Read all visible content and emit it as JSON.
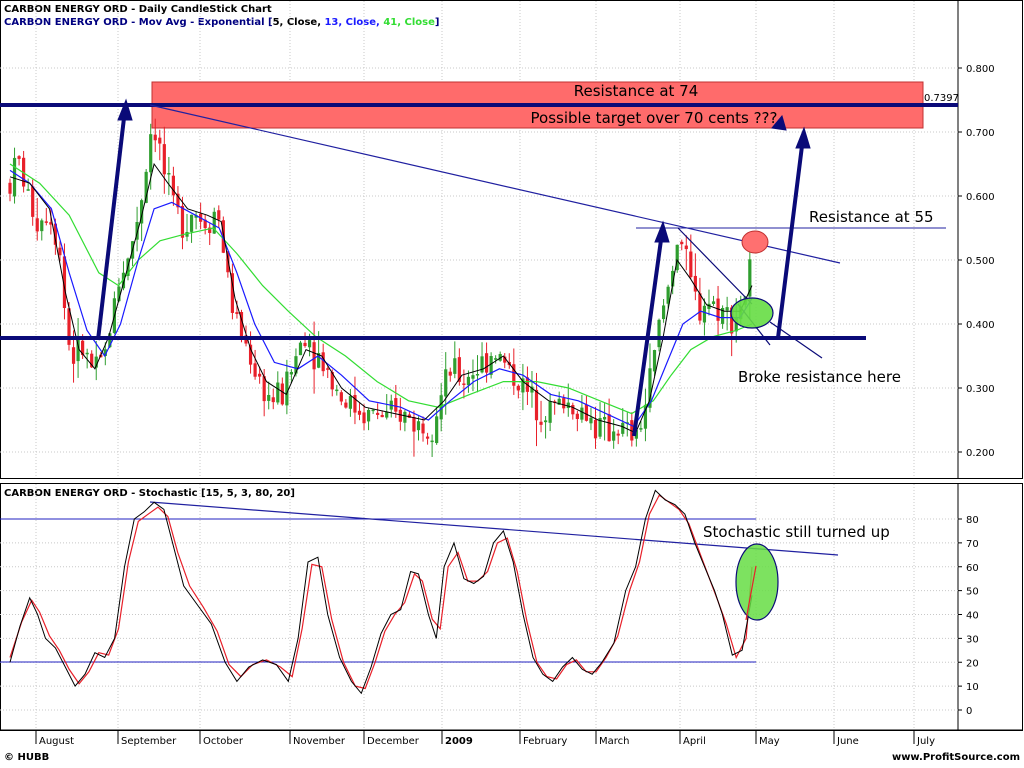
{
  "header": {
    "title": "CARBON ENERGY ORD - Daily CandleStick Chart",
    "mov_avg_prefix": "CARBON ENERGY ORD - Mov Avg - Exponential [",
    "ma_params": [
      "5, Close, ",
      "13, Close, ",
      "41, Close",
      "]"
    ],
    "stoch_title": "CARBON ENERGY ORD - Stochastic [15, 5, 3, 80, 20]"
  },
  "footer": {
    "left": "© HUBB",
    "right": "www.ProfitSource.com"
  },
  "colors": {
    "up_candle": "#2f9e2f",
    "down_candle": "#e8202a",
    "ema5": "#000000",
    "ema13": "#1a1aff",
    "ema41": "#33dd33",
    "annotation_lines": "#0a0a78",
    "resistance_box": "#ff6b6b",
    "stoch_k": "#000000",
    "stoch_d": "#e8202a"
  },
  "chart_data": [
    {
      "type": "candlestick",
      "title": "CARBON ENERGY ORD - Daily CandleStick Chart",
      "x_labels": [
        "August",
        "September",
        "October",
        "November",
        "December",
        "2009",
        "February",
        "March",
        "April",
        "May",
        "June",
        "July"
      ],
      "y_ticks": [
        "0.800",
        "0.700",
        "0.600",
        "0.500",
        "0.400",
        "0.300",
        "0.200"
      ],
      "ylim": [
        0.18,
        0.86
      ],
      "grid": true,
      "price_path": [
        [
          0,
          0.62
        ],
        [
          8,
          0.66
        ],
        [
          18,
          0.6
        ],
        [
          28,
          0.56
        ],
        [
          40,
          0.58
        ],
        [
          50,
          0.52
        ],
        [
          58,
          0.38
        ],
        [
          64,
          0.35
        ],
        [
          74,
          0.36
        ],
        [
          86,
          0.32
        ],
        [
          96,
          0.35
        ],
        [
          104,
          0.42
        ],
        [
          112,
          0.48
        ],
        [
          120,
          0.5
        ],
        [
          128,
          0.56
        ],
        [
          136,
          0.62
        ],
        [
          144,
          0.72
        ],
        [
          150,
          0.69
        ],
        [
          158,
          0.62
        ],
        [
          166,
          0.58
        ],
        [
          176,
          0.56
        ],
        [
          186,
          0.58
        ],
        [
          196,
          0.56
        ],
        [
          204,
          0.57
        ],
        [
          210,
          0.58
        ],
        [
          218,
          0.5
        ],
        [
          226,
          0.42
        ],
        [
          236,
          0.38
        ],
        [
          246,
          0.34
        ],
        [
          256,
          0.3
        ],
        [
          266,
          0.28
        ],
        [
          276,
          0.29
        ],
        [
          286,
          0.33
        ],
        [
          294,
          0.37
        ],
        [
          300,
          0.39
        ],
        [
          308,
          0.36
        ],
        [
          318,
          0.34
        ],
        [
          330,
          0.3
        ],
        [
          340,
          0.28
        ],
        [
          350,
          0.27
        ],
        [
          360,
          0.26
        ],
        [
          372,
          0.26
        ],
        [
          384,
          0.25
        ],
        [
          396,
          0.26
        ],
        [
          408,
          0.25
        ],
        [
          418,
          0.24
        ],
        [
          428,
          0.25
        ],
        [
          438,
          0.29
        ],
        [
          448,
          0.33
        ],
        [
          458,
          0.31
        ],
        [
          470,
          0.33
        ],
        [
          480,
          0.34
        ],
        [
          490,
          0.36
        ],
        [
          500,
          0.34
        ],
        [
          510,
          0.32
        ],
        [
          520,
          0.3
        ],
        [
          530,
          0.28
        ],
        [
          540,
          0.27
        ],
        [
          552,
          0.27
        ],
        [
          562,
          0.28
        ],
        [
          572,
          0.27
        ],
        [
          584,
          0.26
        ],
        [
          594,
          0.24
        ],
        [
          604,
          0.23
        ],
        [
          614,
          0.24
        ],
        [
          624,
          0.23
        ],
        [
          634,
          0.22
        ],
        [
          642,
          0.26
        ],
        [
          650,
          0.32
        ],
        [
          658,
          0.4
        ],
        [
          666,
          0.45
        ],
        [
          672,
          0.5
        ],
        [
          678,
          0.55
        ],
        [
          684,
          0.5
        ],
        [
          690,
          0.46
        ],
        [
          698,
          0.42
        ],
        [
          706,
          0.44
        ],
        [
          714,
          0.43
        ],
        [
          722,
          0.42
        ],
        [
          730,
          0.41
        ],
        [
          738,
          0.42
        ],
        [
          746,
          0.45
        ],
        [
          752,
          0.5
        ]
      ],
      "ema5": [
        [
          0,
          0.63
        ],
        [
          20,
          0.62
        ],
        [
          40,
          0.58
        ],
        [
          56,
          0.45
        ],
        [
          70,
          0.36
        ],
        [
          86,
          0.33
        ],
        [
          100,
          0.38
        ],
        [
          116,
          0.47
        ],
        [
          132,
          0.56
        ],
        [
          146,
          0.65
        ],
        [
          160,
          0.62
        ],
        [
          180,
          0.58
        ],
        [
          200,
          0.57
        ],
        [
          214,
          0.56
        ],
        [
          228,
          0.44
        ],
        [
          244,
          0.36
        ],
        [
          260,
          0.31
        ],
        [
          280,
          0.29
        ],
        [
          300,
          0.36
        ],
        [
          316,
          0.35
        ],
        [
          336,
          0.3
        ],
        [
          360,
          0.27
        ],
        [
          390,
          0.26
        ],
        [
          420,
          0.25
        ],
        [
          440,
          0.28
        ],
        [
          458,
          0.32
        ],
        [
          480,
          0.33
        ],
        [
          500,
          0.35
        ],
        [
          520,
          0.31
        ],
        [
          546,
          0.28
        ],
        [
          570,
          0.27
        ],
        [
          596,
          0.25
        ],
        [
          620,
          0.24
        ],
        [
          634,
          0.23
        ],
        [
          648,
          0.28
        ],
        [
          662,
          0.38
        ],
        [
          676,
          0.5
        ],
        [
          690,
          0.47
        ],
        [
          706,
          0.43
        ],
        [
          724,
          0.42
        ],
        [
          740,
          0.42
        ],
        [
          752,
          0.46
        ]
      ],
      "ema13": [
        [
          0,
          0.64
        ],
        [
          20,
          0.62
        ],
        [
          42,
          0.58
        ],
        [
          60,
          0.48
        ],
        [
          78,
          0.39
        ],
        [
          96,
          0.35
        ],
        [
          112,
          0.4
        ],
        [
          130,
          0.5
        ],
        [
          146,
          0.58
        ],
        [
          164,
          0.59
        ],
        [
          188,
          0.57
        ],
        [
          212,
          0.55
        ],
        [
          230,
          0.48
        ],
        [
          248,
          0.4
        ],
        [
          268,
          0.34
        ],
        [
          292,
          0.33
        ],
        [
          312,
          0.35
        ],
        [
          336,
          0.32
        ],
        [
          364,
          0.28
        ],
        [
          396,
          0.27
        ],
        [
          424,
          0.25
        ],
        [
          446,
          0.28
        ],
        [
          470,
          0.31
        ],
        [
          496,
          0.33
        ],
        [
          520,
          0.32
        ],
        [
          548,
          0.29
        ],
        [
          576,
          0.28
        ],
        [
          604,
          0.26
        ],
        [
          632,
          0.24
        ],
        [
          650,
          0.28
        ],
        [
          666,
          0.34
        ],
        [
          682,
          0.4
        ],
        [
          700,
          0.42
        ],
        [
          720,
          0.41
        ],
        [
          740,
          0.41
        ],
        [
          752,
          0.44
        ]
      ],
      "ema41": [
        [
          0,
          0.65
        ],
        [
          30,
          0.62
        ],
        [
          60,
          0.57
        ],
        [
          90,
          0.48
        ],
        [
          110,
          0.46
        ],
        [
          130,
          0.5
        ],
        [
          152,
          0.53
        ],
        [
          176,
          0.54
        ],
        [
          206,
          0.55
        ],
        [
          230,
          0.51
        ],
        [
          256,
          0.46
        ],
        [
          282,
          0.42
        ],
        [
          310,
          0.38
        ],
        [
          340,
          0.35
        ],
        [
          372,
          0.31
        ],
        [
          404,
          0.28
        ],
        [
          434,
          0.27
        ],
        [
          466,
          0.29
        ],
        [
          500,
          0.31
        ],
        [
          534,
          0.31
        ],
        [
          566,
          0.3
        ],
        [
          598,
          0.28
        ],
        [
          630,
          0.26
        ],
        [
          652,
          0.28
        ],
        [
          670,
          0.32
        ],
        [
          690,
          0.36
        ],
        [
          712,
          0.38
        ],
        [
          736,
          0.39
        ],
        [
          752,
          0.4
        ]
      ]
    },
    {
      "type": "line",
      "title": "CARBON ENERGY ORD - Stochastic [15, 5, 3, 80, 20]",
      "y_ticks": [
        "80",
        "70",
        "60",
        "50",
        "40",
        "30",
        "20",
        "10",
        "0"
      ],
      "ylim": [
        -8,
        92
      ],
      "reference_lines": [
        80,
        20
      ],
      "k_line": [
        [
          0,
          20
        ],
        [
          10,
          35
        ],
        [
          20,
          47
        ],
        [
          28,
          40
        ],
        [
          36,
          30
        ],
        [
          46,
          26
        ],
        [
          56,
          18
        ],
        [
          66,
          10
        ],
        [
          76,
          15
        ],
        [
          86,
          24
        ],
        [
          96,
          22
        ],
        [
          106,
          30
        ],
        [
          116,
          60
        ],
        [
          126,
          80
        ],
        [
          136,
          83
        ],
        [
          146,
          87
        ],
        [
          156,
          84
        ],
        [
          166,
          68
        ],
        [
          176,
          52
        ],
        [
          190,
          44
        ],
        [
          204,
          36
        ],
        [
          218,
          20
        ],
        [
          230,
          12
        ],
        [
          242,
          18
        ],
        [
          256,
          21
        ],
        [
          270,
          19
        ],
        [
          282,
          12
        ],
        [
          292,
          30
        ],
        [
          302,
          62
        ],
        [
          312,
          64
        ],
        [
          322,
          40
        ],
        [
          334,
          22
        ],
        [
          346,
          12
        ],
        [
          356,
          7
        ],
        [
          366,
          18
        ],
        [
          376,
          32
        ],
        [
          386,
          40
        ],
        [
          396,
          42
        ],
        [
          406,
          58
        ],
        [
          414,
          57
        ],
        [
          424,
          40
        ],
        [
          432,
          30
        ],
        [
          440,
          60
        ],
        [
          450,
          70
        ],
        [
          460,
          55
        ],
        [
          470,
          53
        ],
        [
          480,
          56
        ],
        [
          490,
          70
        ],
        [
          500,
          75
        ],
        [
          510,
          62
        ],
        [
          520,
          40
        ],
        [
          530,
          22
        ],
        [
          540,
          15
        ],
        [
          550,
          12
        ],
        [
          560,
          18
        ],
        [
          570,
          22
        ],
        [
          580,
          17
        ],
        [
          590,
          15
        ],
        [
          600,
          20
        ],
        [
          612,
          28
        ],
        [
          624,
          50
        ],
        [
          634,
          60
        ],
        [
          644,
          80
        ],
        [
          654,
          92
        ],
        [
          664,
          88
        ],
        [
          674,
          86
        ],
        [
          684,
          82
        ],
        [
          694,
          70
        ],
        [
          704,
          60
        ],
        [
          714,
          50
        ],
        [
          722,
          40
        ],
        [
          732,
          23
        ],
        [
          742,
          25
        ],
        [
          752,
          48
        ]
      ],
      "d_line": [
        [
          0,
          22
        ],
        [
          12,
          37
        ],
        [
          22,
          46
        ],
        [
          30,
          41
        ],
        [
          40,
          31
        ],
        [
          50,
          25
        ],
        [
          60,
          17
        ],
        [
          70,
          11
        ],
        [
          80,
          16
        ],
        [
          90,
          24
        ],
        [
          100,
          23
        ],
        [
          110,
          34
        ],
        [
          120,
          62
        ],
        [
          130,
          79
        ],
        [
          140,
          82
        ],
        [
          150,
          85
        ],
        [
          160,
          81
        ],
        [
          170,
          66
        ],
        [
          182,
          52
        ],
        [
          196,
          43
        ],
        [
          210,
          33
        ],
        [
          222,
          19
        ],
        [
          234,
          14
        ],
        [
          246,
          19
        ],
        [
          260,
          21
        ],
        [
          274,
          18
        ],
        [
          286,
          14
        ],
        [
          296,
          34
        ],
        [
          306,
          61
        ],
        [
          316,
          60
        ],
        [
          326,
          38
        ],
        [
          338,
          20
        ],
        [
          350,
          10
        ],
        [
          360,
          9
        ],
        [
          370,
          20
        ],
        [
          380,
          33
        ],
        [
          390,
          40
        ],
        [
          400,
          45
        ],
        [
          410,
          57
        ],
        [
          418,
          54
        ],
        [
          428,
          38
        ],
        [
          436,
          34
        ],
        [
          444,
          60
        ],
        [
          454,
          66
        ],
        [
          464,
          54
        ],
        [
          474,
          54
        ],
        [
          484,
          58
        ],
        [
          494,
          70
        ],
        [
          504,
          72
        ],
        [
          514,
          58
        ],
        [
          524,
          37
        ],
        [
          534,
          20
        ],
        [
          544,
          14
        ],
        [
          554,
          13
        ],
        [
          564,
          19
        ],
        [
          574,
          21
        ],
        [
          584,
          16
        ],
        [
          594,
          16
        ],
        [
          604,
          22
        ],
        [
          616,
          31
        ],
        [
          628,
          50
        ],
        [
          638,
          62
        ],
        [
          648,
          82
        ],
        [
          658,
          90
        ],
        [
          668,
          87
        ],
        [
          678,
          84
        ],
        [
          688,
          78
        ],
        [
          698,
          67
        ],
        [
          708,
          56
        ],
        [
          718,
          45
        ],
        [
          726,
          36
        ],
        [
          736,
          22
        ],
        [
          746,
          30
        ],
        [
          752,
          60
        ]
      ]
    }
  ],
  "annotations": {
    "resistance_74": "Resistance at 74",
    "target_70": "Possible target over 70 cents ???",
    "resistance_55": "Resistance at 55",
    "broke_resistance": "Broke resistance here",
    "stoch_up": "Stochastic still turned up",
    "price_label": "0.7397"
  }
}
